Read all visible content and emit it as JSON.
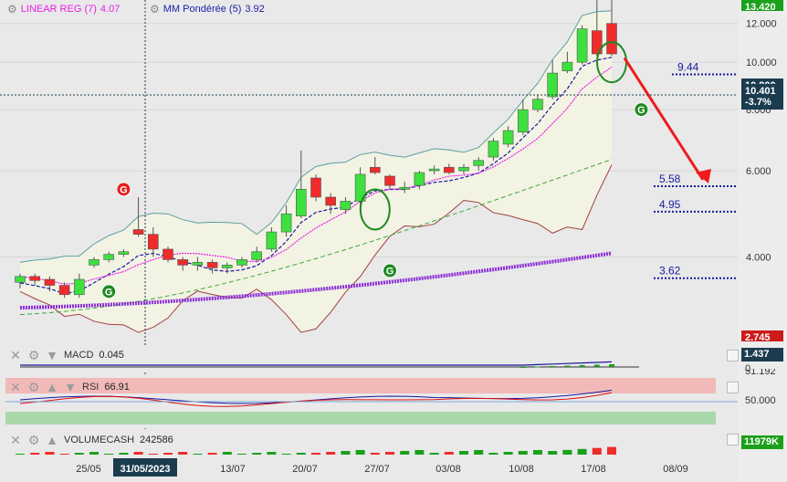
{
  "indicators": {
    "linreg": {
      "label": "LINEAR REG (7)",
      "value": "4.07",
      "color": "#e61fe6"
    },
    "mm": {
      "label": "MM Pondérée (5)",
      "value": "3.92",
      "color": "#1c1ca8"
    }
  },
  "price_axis": {
    "ticks": [
      "12.000",
      "10.000",
      "8.000",
      "6.000",
      "4.000"
    ],
    "top_badge": "13.420",
    "cursor_price": "10.401",
    "cursor_change": "-3.7%",
    "partial_badge": "10.800",
    "bottom_badge": "2.745"
  },
  "levels": [
    {
      "label": "9.44",
      "value": 9.44
    },
    {
      "label": "5.58",
      "value": 5.58
    },
    {
      "label": "4.95",
      "value": 4.95
    },
    {
      "label": "3.62",
      "value": 3.62
    }
  ],
  "signals": [
    {
      "text": "G",
      "kind": "red",
      "index": 7,
      "price": 5.5
    },
    {
      "text": "G",
      "kind": "green",
      "index": 6,
      "price": 3.4
    },
    {
      "text": "G",
      "kind": "green",
      "index": 25,
      "price": 3.75
    },
    {
      "text": "G",
      "kind": "green",
      "index": 42,
      "price": 8.0
    }
  ],
  "date_axis": {
    "labels": [
      "25/05",
      "13/07",
      "20/07",
      "27/07",
      "03/08",
      "10/08",
      "17/08",
      "08/09"
    ],
    "cursor_date": "31/05/2023"
  },
  "macd": {
    "name": "MACD",
    "value": "0.045",
    "badge": "1.437",
    "zero_label": "0"
  },
  "rsi": {
    "name": "RSI",
    "value": "66.91",
    "axis_label": "50.000",
    "badge_partial": "51.192"
  },
  "volume": {
    "name": "VOLUMECASH",
    "value": "242586",
    "badge": "11979K"
  },
  "colors": {
    "up": "#3ee03e",
    "down": "#ef2b2b",
    "badge_green": "#1aa01a",
    "badge_dark": "#1b3c4f",
    "level": "#1818a0",
    "arrow": "#ee1c1c",
    "ellipse": "#1e8a1e"
  },
  "chart_data": {
    "type": "candlestick",
    "x": [
      "19/05",
      "22/05",
      "23/05",
      "24/05",
      "25/05",
      "26/05",
      "29/05",
      "30/05",
      "31/05",
      "01/06",
      "02/06",
      "05/06",
      "06/06",
      "07/06",
      "08/06",
      "09/06",
      "12/06",
      "13/06",
      "14/06",
      "15/06",
      "16/06",
      "19/06",
      "20/06",
      "21/06",
      "22/06",
      "23/06",
      "26/06",
      "27/06",
      "28/06",
      "29/06",
      "30/06",
      "03/07",
      "04/07",
      "05/07",
      "06/07",
      "07/07",
      "10/07",
      "11/07",
      "12/07",
      "13/07",
      "14/07",
      "17/07",
      "18/07",
      "19/07",
      "20/07"
    ],
    "open": [
      3.55,
      3.65,
      3.6,
      3.5,
      3.35,
      3.85,
      3.95,
      4.05,
      4.55,
      4.45,
      4.15,
      3.95,
      3.85,
      3.9,
      3.8,
      3.85,
      3.95,
      4.15,
      4.5,
      4.85,
      5.8,
      5.3,
      5.0,
      5.2,
      6.1,
      5.85,
      5.5,
      5.6,
      6.0,
      6.1,
      6.0,
      6.15,
      6.4,
      6.8,
      7.2,
      8.0,
      8.5,
      9.6,
      10.0,
      11.6,
      12.0,
      null,
      null,
      null,
      null
    ],
    "close": [
      3.65,
      3.58,
      3.5,
      3.35,
      3.6,
      3.95,
      4.05,
      4.1,
      4.45,
      4.15,
      3.95,
      3.85,
      3.9,
      3.8,
      3.85,
      3.95,
      4.1,
      4.5,
      4.9,
      5.5,
      5.3,
      5.1,
      5.2,
      5.9,
      5.95,
      5.6,
      5.55,
      5.95,
      6.05,
      5.95,
      6.1,
      6.3,
      6.9,
      7.25,
      8.0,
      8.4,
      9.5,
      10.0,
      11.7,
      10.4,
      10.4,
      null,
      null,
      null,
      null
    ],
    "high": [
      3.7,
      3.7,
      3.65,
      3.55,
      3.7,
      4.0,
      4.1,
      4.15,
      5.3,
      4.6,
      4.2,
      4.0,
      4.0,
      3.95,
      3.9,
      4.0,
      4.2,
      4.6,
      5.1,
      6.6,
      5.9,
      5.4,
      5.3,
      6.1,
      6.4,
      5.9,
      5.7,
      6.0,
      6.15,
      6.2,
      6.2,
      6.4,
      7.0,
      7.4,
      8.4,
      8.6,
      10.1,
      10.5,
      11.9,
      13.4,
      13.4,
      null,
      null,
      null,
      null
    ],
    "low": [
      3.45,
      3.5,
      3.4,
      3.3,
      3.3,
      3.8,
      3.9,
      4.0,
      4.4,
      4.0,
      3.9,
      3.75,
      3.75,
      3.7,
      3.7,
      3.8,
      3.9,
      4.1,
      4.4,
      4.8,
      5.2,
      4.9,
      4.9,
      5.1,
      5.9,
      5.5,
      5.4,
      5.5,
      5.9,
      5.9,
      5.9,
      6.0,
      6.3,
      6.7,
      7.1,
      7.9,
      8.4,
      9.5,
      9.9,
      10.3,
      10.3,
      null,
      null,
      null,
      null
    ],
    "ylim": [
      2.7,
      13.4
    ],
    "log_scale": true
  }
}
